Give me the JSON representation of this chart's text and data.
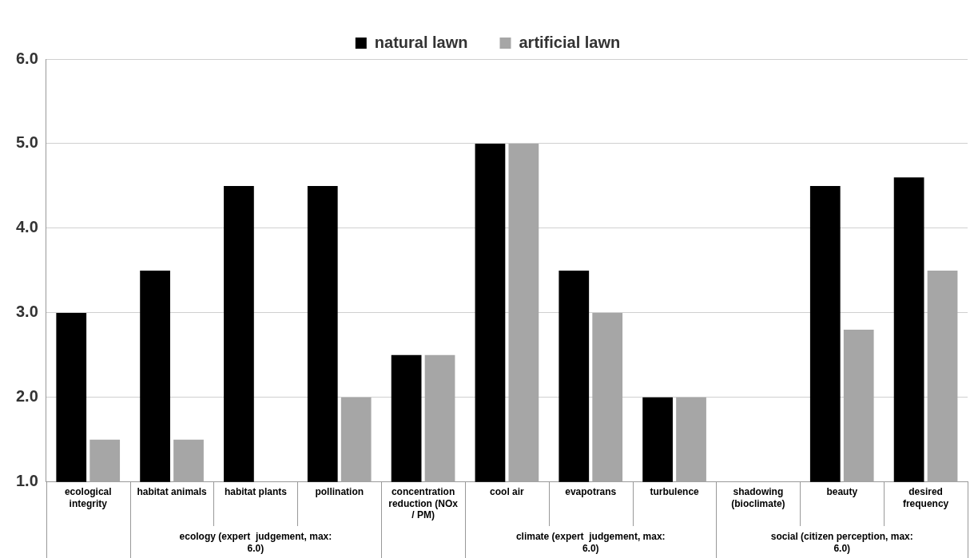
{
  "chart_data": {
    "type": "bar",
    "categories": [
      "ecological integrity",
      "habitat animals",
      "habitat plants",
      "pollination",
      "concentration reduction (NOx / PM)",
      "cool air",
      "evapotrans",
      "turbulence",
      "shadowing (bioclimate)",
      "beauty",
      "desired frequency"
    ],
    "series": [
      {
        "name": "natural lawn",
        "color": "#000000",
        "values": [
          3.0,
          3.5,
          4.5,
          4.5,
          2.5,
          5.0,
          3.5,
          2.0,
          null,
          4.5,
          4.6
        ]
      },
      {
        "name": "artificial lawn",
        "color": "#a6a6a6",
        "values": [
          1.5,
          1.5,
          null,
          2.0,
          2.5,
          5.0,
          3.0,
          2.0,
          null,
          2.8,
          3.5
        ]
      }
    ],
    "ylim": [
      1.0,
      6.0
    ],
    "yticks": [
      {
        "value": 1,
        "label": "1.0"
      },
      {
        "value": 2,
        "label": "2.0"
      },
      {
        "value": 3,
        "label": "3.0"
      },
      {
        "value": 4,
        "label": "4.0"
      },
      {
        "value": 5,
        "label": "5.0"
      },
      {
        "value": 6,
        "label": "6.0"
      }
    ],
    "grid": "y",
    "legend": "top",
    "annotations": [
      {
        "text": "ecology (expert  judgement, max: 6.0)",
        "x": "habitat plants"
      },
      {
        "text": "climate (expert  judgement, max: 6.0)",
        "x": "evapotrans"
      },
      {
        "text": "social (citizen perception, max: 6.0)",
        "x": "beauty"
      }
    ]
  }
}
